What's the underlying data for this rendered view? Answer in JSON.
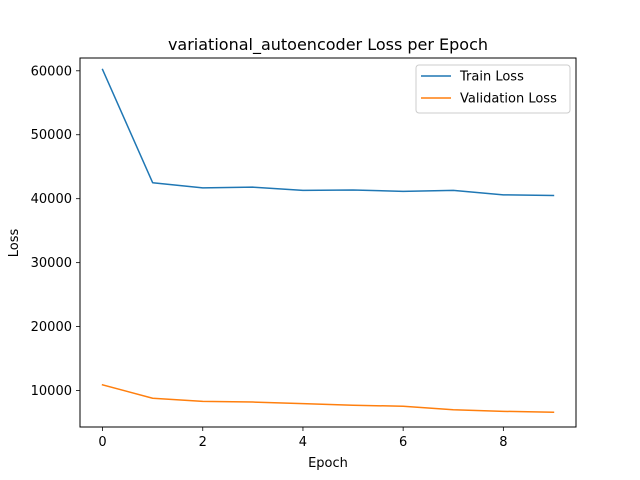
{
  "chart_data": {
    "type": "line",
    "title": "variational_autoencoder Loss per Epoch",
    "xlabel": "Epoch",
    "ylabel": "Loss",
    "x": [
      0,
      1,
      2,
      3,
      4,
      5,
      6,
      7,
      8,
      9
    ],
    "xlim": [
      -0.45,
      9.45
    ],
    "ylim": [
      4300,
      62000
    ],
    "xticks": [
      0,
      2,
      4,
      6,
      8
    ],
    "yticks": [
      10000,
      20000,
      30000,
      40000,
      50000,
      60000
    ],
    "grid": false,
    "legend_position": "top-right",
    "series": [
      {
        "name": "Train Loss",
        "color": "#1f77b4",
        "values": [
          60200,
          42500,
          41700,
          41800,
          41300,
          41350,
          41150,
          41300,
          40600,
          40500
        ]
      },
      {
        "name": "Validation Loss",
        "color": "#ff7f0e",
        "values": [
          10900,
          8800,
          8300,
          8200,
          7950,
          7700,
          7550,
          7000,
          6750,
          6600
        ]
      }
    ]
  }
}
